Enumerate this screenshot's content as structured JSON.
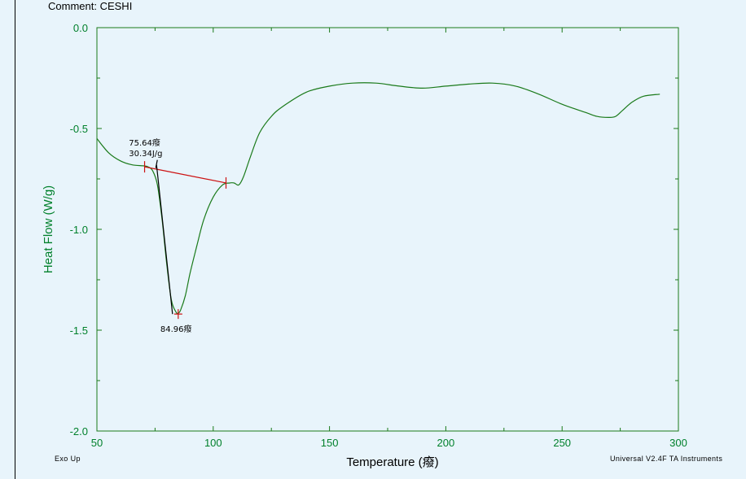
{
  "header": {
    "comment": "Comment: CESHI"
  },
  "footer": {
    "left": "Exo Up",
    "right": "Universal V2.4F TA Instruments"
  },
  "colors": {
    "curve": "#1a7a1a",
    "axis_text": "#00802b",
    "baseline": "#cc1111",
    "tangent": "#000000",
    "background": "#e8f4fb"
  },
  "chart_data": {
    "type": "line",
    "xlabel": "Temperature (癈)",
    "ylabel": "Heat Flow (W/g)",
    "xlim": [
      50,
      300
    ],
    "ylim": [
      -2.0,
      0.0
    ],
    "x_ticks": [
      50,
      100,
      150,
      200,
      250,
      300
    ],
    "x_tick_labels": [
      "50",
      "100",
      "150",
      "200",
      "250",
      "300"
    ],
    "y_ticks": [
      0.0,
      -0.5,
      -1.0,
      -1.5,
      -2.0
    ],
    "y_tick_labels": [
      "0.0",
      "-0.5",
      "-1.0",
      "-1.5",
      "-2.0"
    ],
    "grid": false,
    "series": [
      {
        "x": [
          50,
          55,
          60,
          65,
          70,
          72,
          74,
          76,
          78,
          80,
          82,
          84,
          85,
          86,
          88,
          90,
          93,
          96,
          100,
          104,
          107,
          109,
          111,
          113,
          116,
          120,
          125,
          130,
          140,
          150,
          160,
          170,
          180,
          190,
          200,
          210,
          220,
          230,
          240,
          250,
          260,
          265,
          270,
          273,
          276,
          280,
          285,
          292
        ],
        "y": [
          -0.55,
          -0.62,
          -0.66,
          -0.68,
          -0.685,
          -0.69,
          -0.71,
          -0.78,
          -0.95,
          -1.17,
          -1.35,
          -1.41,
          -1.415,
          -1.4,
          -1.33,
          -1.22,
          -1.08,
          -0.95,
          -0.84,
          -0.78,
          -0.77,
          -0.77,
          -0.78,
          -0.74,
          -0.64,
          -0.52,
          -0.44,
          -0.39,
          -0.32,
          -0.29,
          -0.275,
          -0.275,
          -0.29,
          -0.3,
          -0.29,
          -0.28,
          -0.275,
          -0.29,
          -0.33,
          -0.38,
          -0.42,
          -0.44,
          -0.445,
          -0.44,
          -0.41,
          -0.37,
          -0.34,
          -0.33
        ]
      }
    ],
    "baseline": {
      "x": [
        70.5,
        105.5
      ],
      "y": [
        -0.69,
        -0.77
      ]
    },
    "tangent": {
      "x": [
        75.64,
        82.5
      ],
      "y": [
        -0.68,
        -1.42
      ]
    },
    "annotations": [
      {
        "x": 75.64,
        "y": -0.69,
        "lines": [
          "75.64癈",
          "30.34J/g"
        ]
      },
      {
        "x": 84.96,
        "y": -1.42,
        "lines": [
          "84.96癈"
        ]
      }
    ]
  }
}
